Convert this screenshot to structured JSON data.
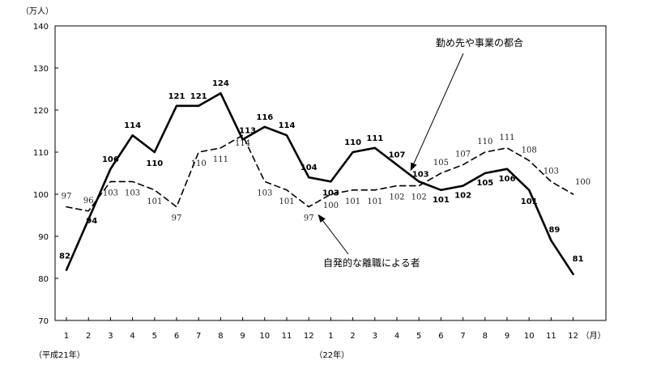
{
  "chart_data": {
    "type": "line",
    "unit_label": "（万人）",
    "x_unit_label": "（月）",
    "ylim": [
      70,
      140
    ],
    "yticks": [
      70,
      80,
      90,
      100,
      110,
      120,
      130,
      140
    ],
    "categories": [
      "1",
      "2",
      "3",
      "4",
      "5",
      "6",
      "7",
      "8",
      "9",
      "10",
      "11",
      "12",
      "1",
      "2",
      "3",
      "4",
      "5",
      "6",
      "7",
      "8",
      "9",
      "10",
      "11",
      "12"
    ],
    "era_labels": [
      {
        "text": "（平成21年）",
        "at_index": 0
      },
      {
        "text": "（22年）",
        "at_index": 12
      }
    ],
    "series": [
      {
        "name": "勤め先や事業の都合",
        "style": "solid",
        "values": [
          82,
          94,
          106,
          114,
          110,
          121,
          121,
          124,
          113,
          116,
          114,
          104,
          103,
          110,
          111,
          107,
          103,
          101,
          102,
          105,
          106,
          101,
          89,
          81
        ]
      },
      {
        "name": "自発的な離職による者",
        "style": "dashed",
        "values": [
          97,
          96,
          103,
          103,
          101,
          97,
          110,
          111,
          114,
          103,
          101,
          97,
          100,
          101,
          101,
          102,
          102,
          105,
          107,
          110,
          111,
          108,
          103,
          100
        ]
      }
    ],
    "annotations": [
      {
        "text": "勤め先や事業の都合",
        "series": 0
      },
      {
        "text": "自発的な離職による者",
        "series": 1
      }
    ],
    "grid": false
  }
}
